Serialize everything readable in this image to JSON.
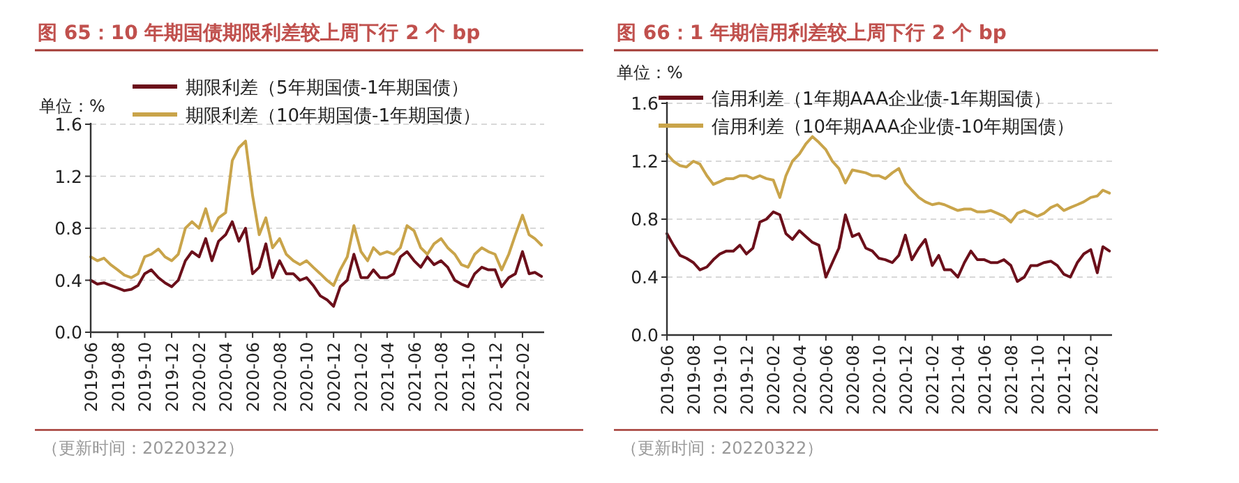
{
  "chart_data": [
    {
      "type": "line",
      "title": "图 65：10 年期国债期限利差较上周下行 2 个 bp",
      "ylabel": "单位：%",
      "x": [
        "2019-06-01",
        "2019-06-16",
        "2019-07-01",
        "2019-07-16",
        "2019-08-01",
        "2019-08-16",
        "2019-09-01",
        "2019-09-16",
        "2019-10-01",
        "2019-10-16",
        "2019-11-01",
        "2019-11-16",
        "2019-12-01",
        "2019-12-16",
        "2020-01-01",
        "2020-01-16",
        "2020-02-01",
        "2020-02-16",
        "2020-03-01",
        "2020-03-16",
        "2020-04-01",
        "2020-04-16",
        "2020-05-01",
        "2020-05-16",
        "2020-06-01",
        "2020-06-16",
        "2020-07-01",
        "2020-07-16",
        "2020-08-01",
        "2020-08-16",
        "2020-09-01",
        "2020-09-16",
        "2020-10-01",
        "2020-10-16",
        "2020-11-01",
        "2020-11-16",
        "2020-12-01",
        "2020-12-16",
        "2021-01-01",
        "2021-01-16",
        "2021-02-01",
        "2021-02-16",
        "2021-03-01",
        "2021-03-16",
        "2021-04-01",
        "2021-04-16",
        "2021-05-01",
        "2021-05-16",
        "2021-06-01",
        "2021-06-16",
        "2021-07-01",
        "2021-07-16",
        "2021-08-01",
        "2021-08-16",
        "2021-09-01",
        "2021-09-16",
        "2021-10-01",
        "2021-10-16",
        "2021-11-01",
        "2021-11-16",
        "2021-12-01",
        "2021-12-16",
        "2022-01-01",
        "2022-01-16",
        "2022-02-01",
        "2022-02-16",
        "2022-03-01",
        "2022-03-16"
      ],
      "series": [
        {
          "name": "期限利差（5年期国债-1年期国债）",
          "color": "#6b0f1a",
          "values": [
            0.4,
            0.37,
            0.38,
            0.36,
            0.34,
            0.32,
            0.33,
            0.36,
            0.45,
            0.48,
            0.42,
            0.38,
            0.35,
            0.4,
            0.55,
            0.62,
            0.58,
            0.72,
            0.55,
            0.7,
            0.75,
            0.85,
            0.7,
            0.8,
            0.45,
            0.5,
            0.68,
            0.42,
            0.55,
            0.45,
            0.45,
            0.4,
            0.42,
            0.36,
            0.28,
            0.25,
            0.2,
            0.35,
            0.4,
            0.6,
            0.42,
            0.42,
            0.48,
            0.42,
            0.42,
            0.45,
            0.58,
            0.62,
            0.55,
            0.5,
            0.58,
            0.52,
            0.55,
            0.5,
            0.4,
            0.37,
            0.35,
            0.45,
            0.5,
            0.48,
            0.48,
            0.35,
            0.42,
            0.45,
            0.62,
            0.45,
            0.46,
            0.43
          ]
        },
        {
          "name": "期限利差（10年期国债-1年期国债）",
          "color": "#c9a44a",
          "values": [
            0.58,
            0.55,
            0.57,
            0.52,
            0.48,
            0.44,
            0.42,
            0.45,
            0.58,
            0.6,
            0.64,
            0.58,
            0.55,
            0.6,
            0.8,
            0.85,
            0.8,
            0.95,
            0.78,
            0.88,
            0.92,
            1.32,
            1.42,
            1.47,
            1.05,
            0.75,
            0.88,
            0.65,
            0.72,
            0.6,
            0.55,
            0.52,
            0.55,
            0.5,
            0.45,
            0.4,
            0.36,
            0.48,
            0.58,
            0.82,
            0.62,
            0.55,
            0.65,
            0.6,
            0.62,
            0.6,
            0.65,
            0.82,
            0.78,
            0.65,
            0.6,
            0.68,
            0.72,
            0.65,
            0.6,
            0.52,
            0.5,
            0.6,
            0.65,
            0.62,
            0.6,
            0.48,
            0.6,
            0.75,
            0.9,
            0.75,
            0.72,
            0.67
          ]
        }
      ],
      "xlim": [
        "2019-06-01",
        "2022-03-22"
      ],
      "xticks": [
        "2019-06",
        "2019-08",
        "2019-10",
        "2019-12",
        "2020-02",
        "2020-04",
        "2020-06",
        "2020-08",
        "2020-10",
        "2020-12",
        "2021-02",
        "2021-04",
        "2021-06",
        "2021-08",
        "2021-10",
        "2021-12",
        "2022-02"
      ],
      "ylim": [
        0,
        1.6
      ],
      "yticks": [
        {
          "value": 0,
          "label": "0.0"
        },
        0.4,
        0.8,
        1.2,
        1.6
      ],
      "grid": "y",
      "legend": "top",
      "marker": "none",
      "line_style": "solid",
      "annotations": [
        "（更新时间：20220322）"
      ]
    },
    {
      "type": "line",
      "title": "图 66：1 年期信用利差较上周下行 2 个 bp",
      "ylabel": "单位：%",
      "x": [
        "2019-06-01",
        "2019-06-16",
        "2019-07-01",
        "2019-07-16",
        "2019-08-01",
        "2019-08-16",
        "2019-09-01",
        "2019-09-16",
        "2019-10-01",
        "2019-10-16",
        "2019-11-01",
        "2019-11-16",
        "2019-12-01",
        "2019-12-16",
        "2020-01-01",
        "2020-01-16",
        "2020-02-01",
        "2020-02-16",
        "2020-03-01",
        "2020-03-16",
        "2020-04-01",
        "2020-04-16",
        "2020-05-01",
        "2020-05-16",
        "2020-06-01",
        "2020-06-16",
        "2020-07-01",
        "2020-07-16",
        "2020-08-01",
        "2020-08-16",
        "2020-09-01",
        "2020-09-16",
        "2020-10-01",
        "2020-10-16",
        "2020-11-01",
        "2020-11-16",
        "2020-12-01",
        "2020-12-16",
        "2021-01-01",
        "2021-01-16",
        "2021-02-01",
        "2021-02-16",
        "2021-03-01",
        "2021-03-16",
        "2021-04-01",
        "2021-04-16",
        "2021-05-01",
        "2021-05-16",
        "2021-06-01",
        "2021-06-16",
        "2021-07-01",
        "2021-07-16",
        "2021-08-01",
        "2021-08-16",
        "2021-09-01",
        "2021-09-16",
        "2021-10-01",
        "2021-10-16",
        "2021-11-01",
        "2021-11-16",
        "2021-12-01",
        "2021-12-16",
        "2022-01-01",
        "2022-01-16",
        "2022-02-01",
        "2022-02-16",
        "2022-03-01",
        "2022-03-16"
      ],
      "series": [
        {
          "name": "信用利差（1年期AAA企业债-1年期国债）",
          "color": "#6b0f1a",
          "values": [
            0.7,
            0.62,
            0.55,
            0.53,
            0.5,
            0.45,
            0.47,
            0.52,
            0.56,
            0.58,
            0.58,
            0.62,
            0.56,
            0.6,
            0.78,
            0.8,
            0.85,
            0.83,
            0.7,
            0.66,
            0.72,
            0.68,
            0.64,
            0.62,
            0.4,
            0.5,
            0.6,
            0.83,
            0.68,
            0.7,
            0.6,
            0.58,
            0.53,
            0.52,
            0.5,
            0.55,
            0.69,
            0.52,
            0.6,
            0.66,
            0.48,
            0.55,
            0.45,
            0.45,
            0.4,
            0.5,
            0.58,
            0.52,
            0.52,
            0.5,
            0.5,
            0.52,
            0.48,
            0.37,
            0.4,
            0.48,
            0.48,
            0.5,
            0.51,
            0.48,
            0.42,
            0.4,
            0.5,
            0.56,
            0.59,
            0.43,
            0.61,
            0.58
          ]
        },
        {
          "name": "信用利差（10年期AAA企业债-10年期国债）",
          "color": "#c9a44a",
          "values": [
            1.25,
            1.2,
            1.17,
            1.16,
            1.2,
            1.18,
            1.1,
            1.04,
            1.06,
            1.08,
            1.08,
            1.1,
            1.1,
            1.08,
            1.1,
            1.08,
            1.07,
            0.95,
            1.1,
            1.2,
            1.25,
            1.32,
            1.37,
            1.33,
            1.28,
            1.2,
            1.15,
            1.05,
            1.14,
            1.13,
            1.12,
            1.1,
            1.1,
            1.08,
            1.12,
            1.15,
            1.05,
            1.0,
            0.95,
            0.92,
            0.9,
            0.91,
            0.9,
            0.88,
            0.86,
            0.87,
            0.87,
            0.85,
            0.85,
            0.86,
            0.84,
            0.82,
            0.78,
            0.84,
            0.86,
            0.84,
            0.82,
            0.84,
            0.88,
            0.9,
            0.86,
            0.88,
            0.9,
            0.92,
            0.95,
            0.96,
            1.0,
            0.98
          ]
        }
      ],
      "xlim": [
        "2019-06-01",
        "2022-03-22"
      ],
      "xticks": [
        "2019-06",
        "2019-08",
        "2019-10",
        "2019-12",
        "2020-02",
        "2020-04",
        "2020-06",
        "2020-08",
        "2020-10",
        "2020-12",
        "2021-02",
        "2021-04",
        "2021-06",
        "2021-08",
        "2021-10",
        "2021-12",
        "2022-02"
      ],
      "ylim": [
        0,
        1.6
      ],
      "yticks": [
        {
          "value": 0,
          "label": "0.0"
        },
        0.4,
        0.8,
        1.2,
        1.6
      ],
      "grid": "y",
      "legend": "top",
      "marker": "none",
      "line_style": "solid",
      "annotations": [
        "（更新时间：20220322）"
      ]
    }
  ]
}
